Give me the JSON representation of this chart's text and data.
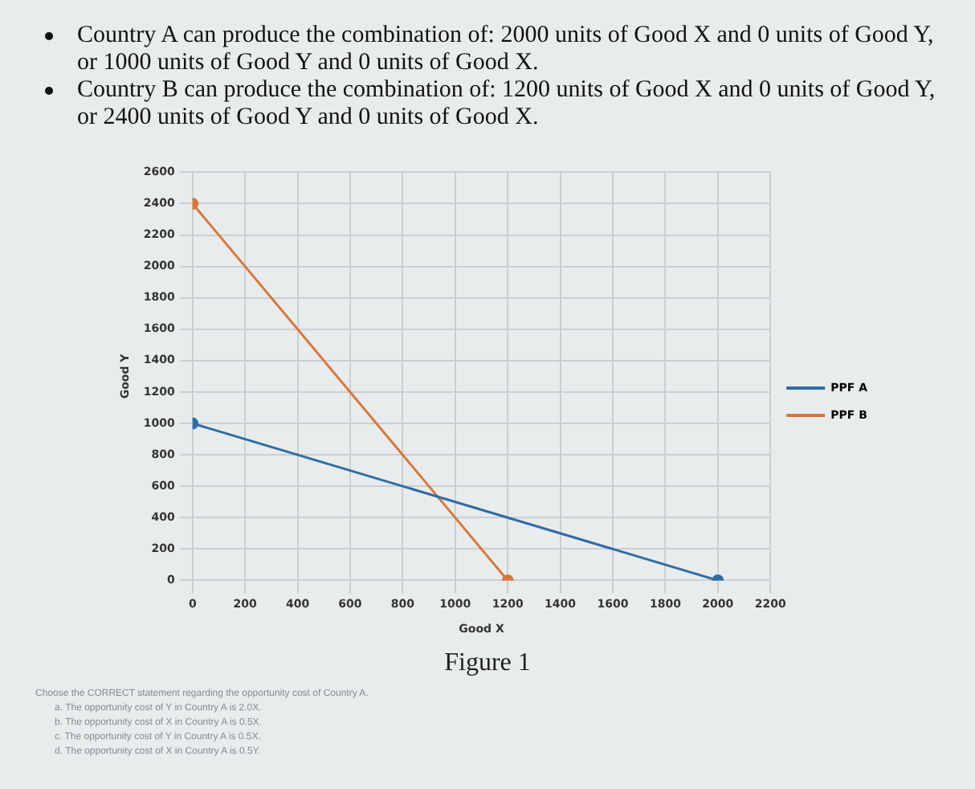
{
  "chart_data": {
    "type": "line",
    "xlabel": "Good X",
    "ylabel": "Good Y",
    "xlim": [
      0,
      2200
    ],
    "xticks": [
      0,
      200,
      400,
      600,
      800,
      1000,
      1200,
      1400,
      1600,
      1800,
      2000,
      2200
    ],
    "ylim": [
      0,
      2600
    ],
    "yticks": [
      0,
      200,
      400,
      600,
      800,
      1000,
      1200,
      1400,
      1600,
      1800,
      2000,
      2200,
      2400,
      2600
    ],
    "series": [
      {
        "name": "PPF A",
        "color": "#2e6da4",
        "x": [
          0,
          2000
        ],
        "values": [
          1000,
          0
        ]
      },
      {
        "name": "PPF B",
        "color": "#d9773a",
        "x": [
          0,
          1200
        ],
        "values": [
          2400,
          0
        ]
      }
    ],
    "grid": true,
    "legend": "right",
    "marker": "circle",
    "line_style": "solid",
    "annotations": [
      "Country A can produce the combination of: 2000 units of Good X and 0 units of Good Y, or 1000 units of Good Y and 0 units of Good X.",
      "Country B can produce the combination of: 1200 units of Good X and 0 units of Good Y, or 2400 units of Good Y and 0 units of Good X.",
      "Figure 1",
      "Choose the CORRECT statement regarding the opportunity cost of Country A.",
      "a. The opportunity cost of Y in Country A is 2.0X.",
      "b. The opportunity cost of X in Country A is 0.5X.",
      "c. The opportunity cost of Y in Country A is 0.5X.",
      "d. The opportunity cost of X in Country A is 0.5Y."
    ]
  }
}
